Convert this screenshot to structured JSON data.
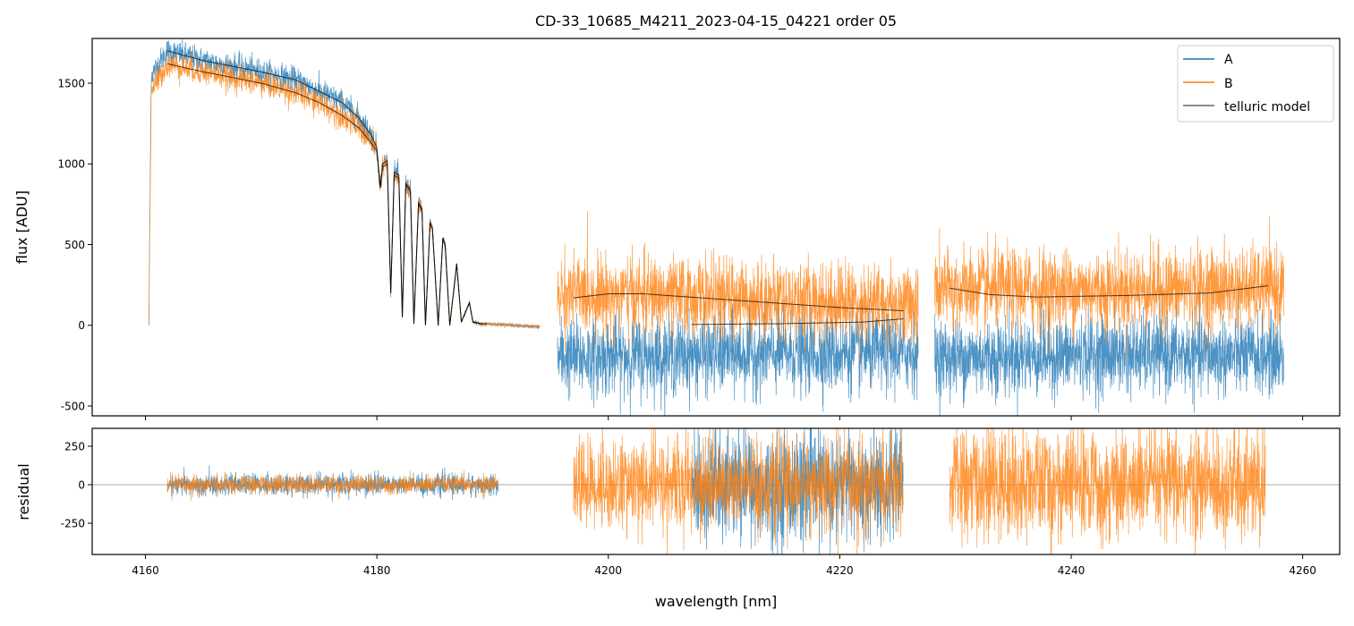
{
  "chart_data": {
    "type": "line",
    "title": "CD-33_10685_M4211_2023-04-15_04221  order 05",
    "xlabel": "wavelength [nm]",
    "xlim": [
      4155.4,
      4263.2
    ],
    "xticks": [
      4160,
      4180,
      4200,
      4220,
      4240,
      4260
    ],
    "panels": {
      "top": {
        "ylabel": "flux [ADU]",
        "ylim": [
          -561,
          1777
        ],
        "yticks": [
          -500,
          0,
          500,
          1000,
          1500
        ]
      },
      "bottom": {
        "ylabel": "residual",
        "ylim": [
          -453,
          366
        ],
        "yticks": [
          -250,
          0,
          250
        ],
        "zero_line": true
      }
    },
    "legend": {
      "placement": "top-right",
      "entries": [
        "A",
        "B",
        "telluric model"
      ]
    },
    "colors": {
      "A": "#1f77b4",
      "B": "#ff7f0e",
      "model": "#000000"
    },
    "series_note": "noisy spectra approximated by smooth anchors [wavelength, A, B] plus noise sigma",
    "spectrum_segments": [
      {
        "range": [
          4160.3,
          4194.1
        ],
        "noise": [
          40,
          40
        ],
        "anchors": [
          [
            4160.3,
            0,
            0
          ],
          [
            4160.5,
            1550,
            1450
          ],
          [
            4161.9,
            1700,
            1620
          ],
          [
            4165,
            1640,
            1570
          ],
          [
            4170,
            1570,
            1500
          ],
          [
            4173,
            1520,
            1440
          ],
          [
            4175,
            1450,
            1380
          ],
          [
            4177,
            1380,
            1300
          ],
          [
            4178.5,
            1280,
            1220
          ],
          [
            4179.5,
            1180,
            1130
          ],
          [
            4180.0,
            1100,
            1080
          ],
          [
            4180.3,
            850,
            850
          ],
          [
            4180.5,
            1000,
            980
          ],
          [
            4180.9,
            1020,
            1000
          ],
          [
            4181.2,
            200,
            200
          ],
          [
            4181.5,
            950,
            930
          ],
          [
            4181.9,
            930,
            910
          ],
          [
            4182.2,
            50,
            50
          ],
          [
            4182.5,
            880,
            870
          ],
          [
            4182.9,
            840,
            830
          ],
          [
            4183.2,
            10,
            10
          ],
          [
            4183.6,
            760,
            750
          ],
          [
            4183.9,
            720,
            710
          ],
          [
            4184.2,
            0,
            0
          ],
          [
            4184.6,
            640,
            640
          ],
          [
            4184.8,
            600,
            600
          ],
          [
            4185.3,
            0,
            0
          ],
          [
            4185.7,
            540,
            540
          ],
          [
            4185.9,
            500,
            500
          ],
          [
            4186.3,
            0,
            0
          ],
          [
            4186.9,
            380,
            380
          ],
          [
            4187.3,
            20,
            20
          ],
          [
            4188.0,
            140,
            140
          ],
          [
            4188.3,
            20,
            20
          ],
          [
            4189,
            10,
            10
          ],
          [
            4194.1,
            -10,
            -10
          ]
        ]
      },
      {
        "range": [
          4195.6,
          4226.8
        ],
        "noise": [
          120,
          120
        ],
        "anchors": [
          [
            4195.6,
            -200,
            200
          ],
          [
            4210,
            -180,
            170
          ],
          [
            4226.8,
            -170,
            130
          ]
        ]
      },
      {
        "range": [
          4228.2,
          4258.4
        ],
        "noise": [
          120,
          125
        ],
        "anchors": [
          [
            4228.2,
            -200,
            220
          ],
          [
            4243,
            -180,
            220
          ],
          [
            4258.4,
            -190,
            230
          ]
        ]
      }
    ],
    "telluric_models": [
      {
        "name": "model-A-seg1",
        "points": [
          [
            4161.9,
            1700
          ],
          [
            4165,
            1640
          ],
          [
            4170,
            1570
          ],
          [
            4173,
            1520
          ],
          [
            4175,
            1450
          ],
          [
            4177,
            1380
          ],
          [
            4178.5,
            1280
          ],
          [
            4179.5,
            1180
          ],
          [
            4180.0,
            1100
          ],
          [
            4180.3,
            850
          ],
          [
            4180.5,
            1000
          ],
          [
            4180.9,
            1020
          ],
          [
            4181.2,
            200
          ],
          [
            4181.5,
            950
          ],
          [
            4181.9,
            930
          ],
          [
            4182.2,
            50
          ],
          [
            4182.5,
            880
          ],
          [
            4182.9,
            840
          ],
          [
            4183.2,
            10
          ],
          [
            4183.6,
            760
          ],
          [
            4183.9,
            720
          ],
          [
            4184.2,
            0
          ],
          [
            4184.6,
            640
          ],
          [
            4184.8,
            600
          ],
          [
            4185.3,
            0
          ],
          [
            4185.7,
            540
          ],
          [
            4185.9,
            500
          ],
          [
            4186.3,
            0
          ],
          [
            4186.9,
            380
          ],
          [
            4187.3,
            20
          ],
          [
            4188.0,
            140
          ],
          [
            4188.3,
            20
          ],
          [
            4189,
            10
          ],
          [
            4189.5,
            10
          ]
        ]
      },
      {
        "name": "model-B-seg1",
        "points": [
          [
            4161.9,
            1620
          ],
          [
            4165,
            1570
          ],
          [
            4170,
            1500
          ],
          [
            4173,
            1440
          ],
          [
            4175,
            1380
          ],
          [
            4177,
            1300
          ],
          [
            4178.5,
            1220
          ],
          [
            4179.5,
            1130
          ],
          [
            4180.0,
            1080
          ],
          [
            4180.3,
            850
          ],
          [
            4180.5,
            980
          ],
          [
            4180.9,
            1000
          ],
          [
            4181.2,
            200
          ],
          [
            4181.5,
            930
          ],
          [
            4181.9,
            910
          ],
          [
            4182.2,
            50
          ],
          [
            4182.5,
            870
          ],
          [
            4182.9,
            830
          ],
          [
            4183.2,
            10
          ],
          [
            4183.6,
            750
          ],
          [
            4183.9,
            710
          ],
          [
            4184.2,
            0
          ],
          [
            4184.6,
            640
          ],
          [
            4184.8,
            600
          ],
          [
            4185.3,
            0
          ],
          [
            4185.7,
            540
          ],
          [
            4185.9,
            500
          ],
          [
            4186.3,
            0
          ],
          [
            4186.9,
            380
          ],
          [
            4187.3,
            20
          ],
          [
            4188.0,
            140
          ],
          [
            4188.3,
            20
          ],
          [
            4189,
            10
          ]
        ]
      },
      {
        "name": "model-B-seg2",
        "points": [
          [
            4197,
            170
          ],
          [
            4200,
            195
          ],
          [
            4203,
            195
          ],
          [
            4210,
            160
          ],
          [
            4220,
            110
          ],
          [
            4225.5,
            90
          ]
        ]
      },
      {
        "name": "model-A-seg2",
        "points": [
          [
            4207.2,
            5
          ],
          [
            4215,
            10
          ],
          [
            4222,
            20
          ],
          [
            4225.5,
            40
          ]
        ]
      },
      {
        "name": "model-B-seg3",
        "points": [
          [
            4229.5,
            230
          ],
          [
            4233,
            190
          ],
          [
            4237,
            175
          ],
          [
            4245,
            185
          ],
          [
            4252,
            200
          ],
          [
            4257,
            245
          ]
        ]
      }
    ],
    "residual_segments": [
      {
        "series": "A",
        "range": [
          4161.9,
          4190.5
        ],
        "sigma": 35
      },
      {
        "series": "B",
        "range": [
          4161.9,
          4190.5
        ],
        "sigma": 30
      },
      {
        "series": "A",
        "range": [
          4207.2,
          4225.5
        ],
        "sigma": 180
      },
      {
        "series": "B",
        "range": [
          4197.0,
          4225.5
        ],
        "sigma": 150
      },
      {
        "series": "B",
        "range": [
          4229.5,
          4256.8
        ],
        "sigma": 180
      }
    ]
  }
}
